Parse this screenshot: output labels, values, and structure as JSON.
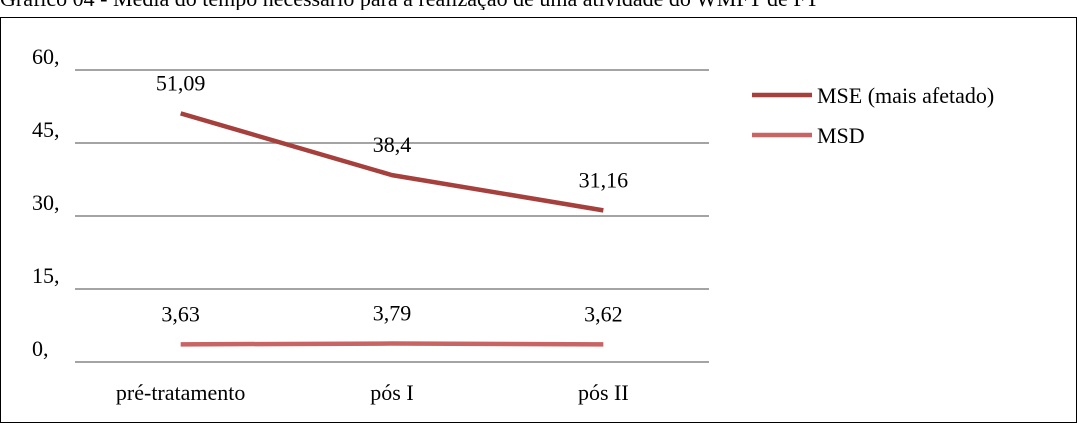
{
  "caption": "Gráfico 04 - Média do tempo necessário para a realização de uma atividade do WMFT de FT",
  "chart_data": {
    "type": "line",
    "title": "",
    "xlabel": "",
    "ylabel": "",
    "categories": [
      "pré-tratamento",
      "pós I",
      "pós II"
    ],
    "ylim": [
      0,
      60
    ],
    "yticks": [
      0,
      15,
      30,
      45,
      60
    ],
    "ytick_labels": [
      "0,",
      "15,",
      "30,",
      "45,",
      "60,"
    ],
    "grid": true,
    "legend_position": "right",
    "series": [
      {
        "name": "MSE (mais afetado)",
        "values": [
          51.09,
          38.4,
          31.16
        ],
        "labels": [
          "51,09",
          "38,4",
          "31,16"
        ],
        "color": "#a5403d"
      },
      {
        "name": "MSD",
        "values": [
          3.63,
          3.79,
          3.62
        ],
        "labels": [
          "3,63",
          "3,79",
          "3,62"
        ],
        "color": "#c86464"
      }
    ]
  }
}
